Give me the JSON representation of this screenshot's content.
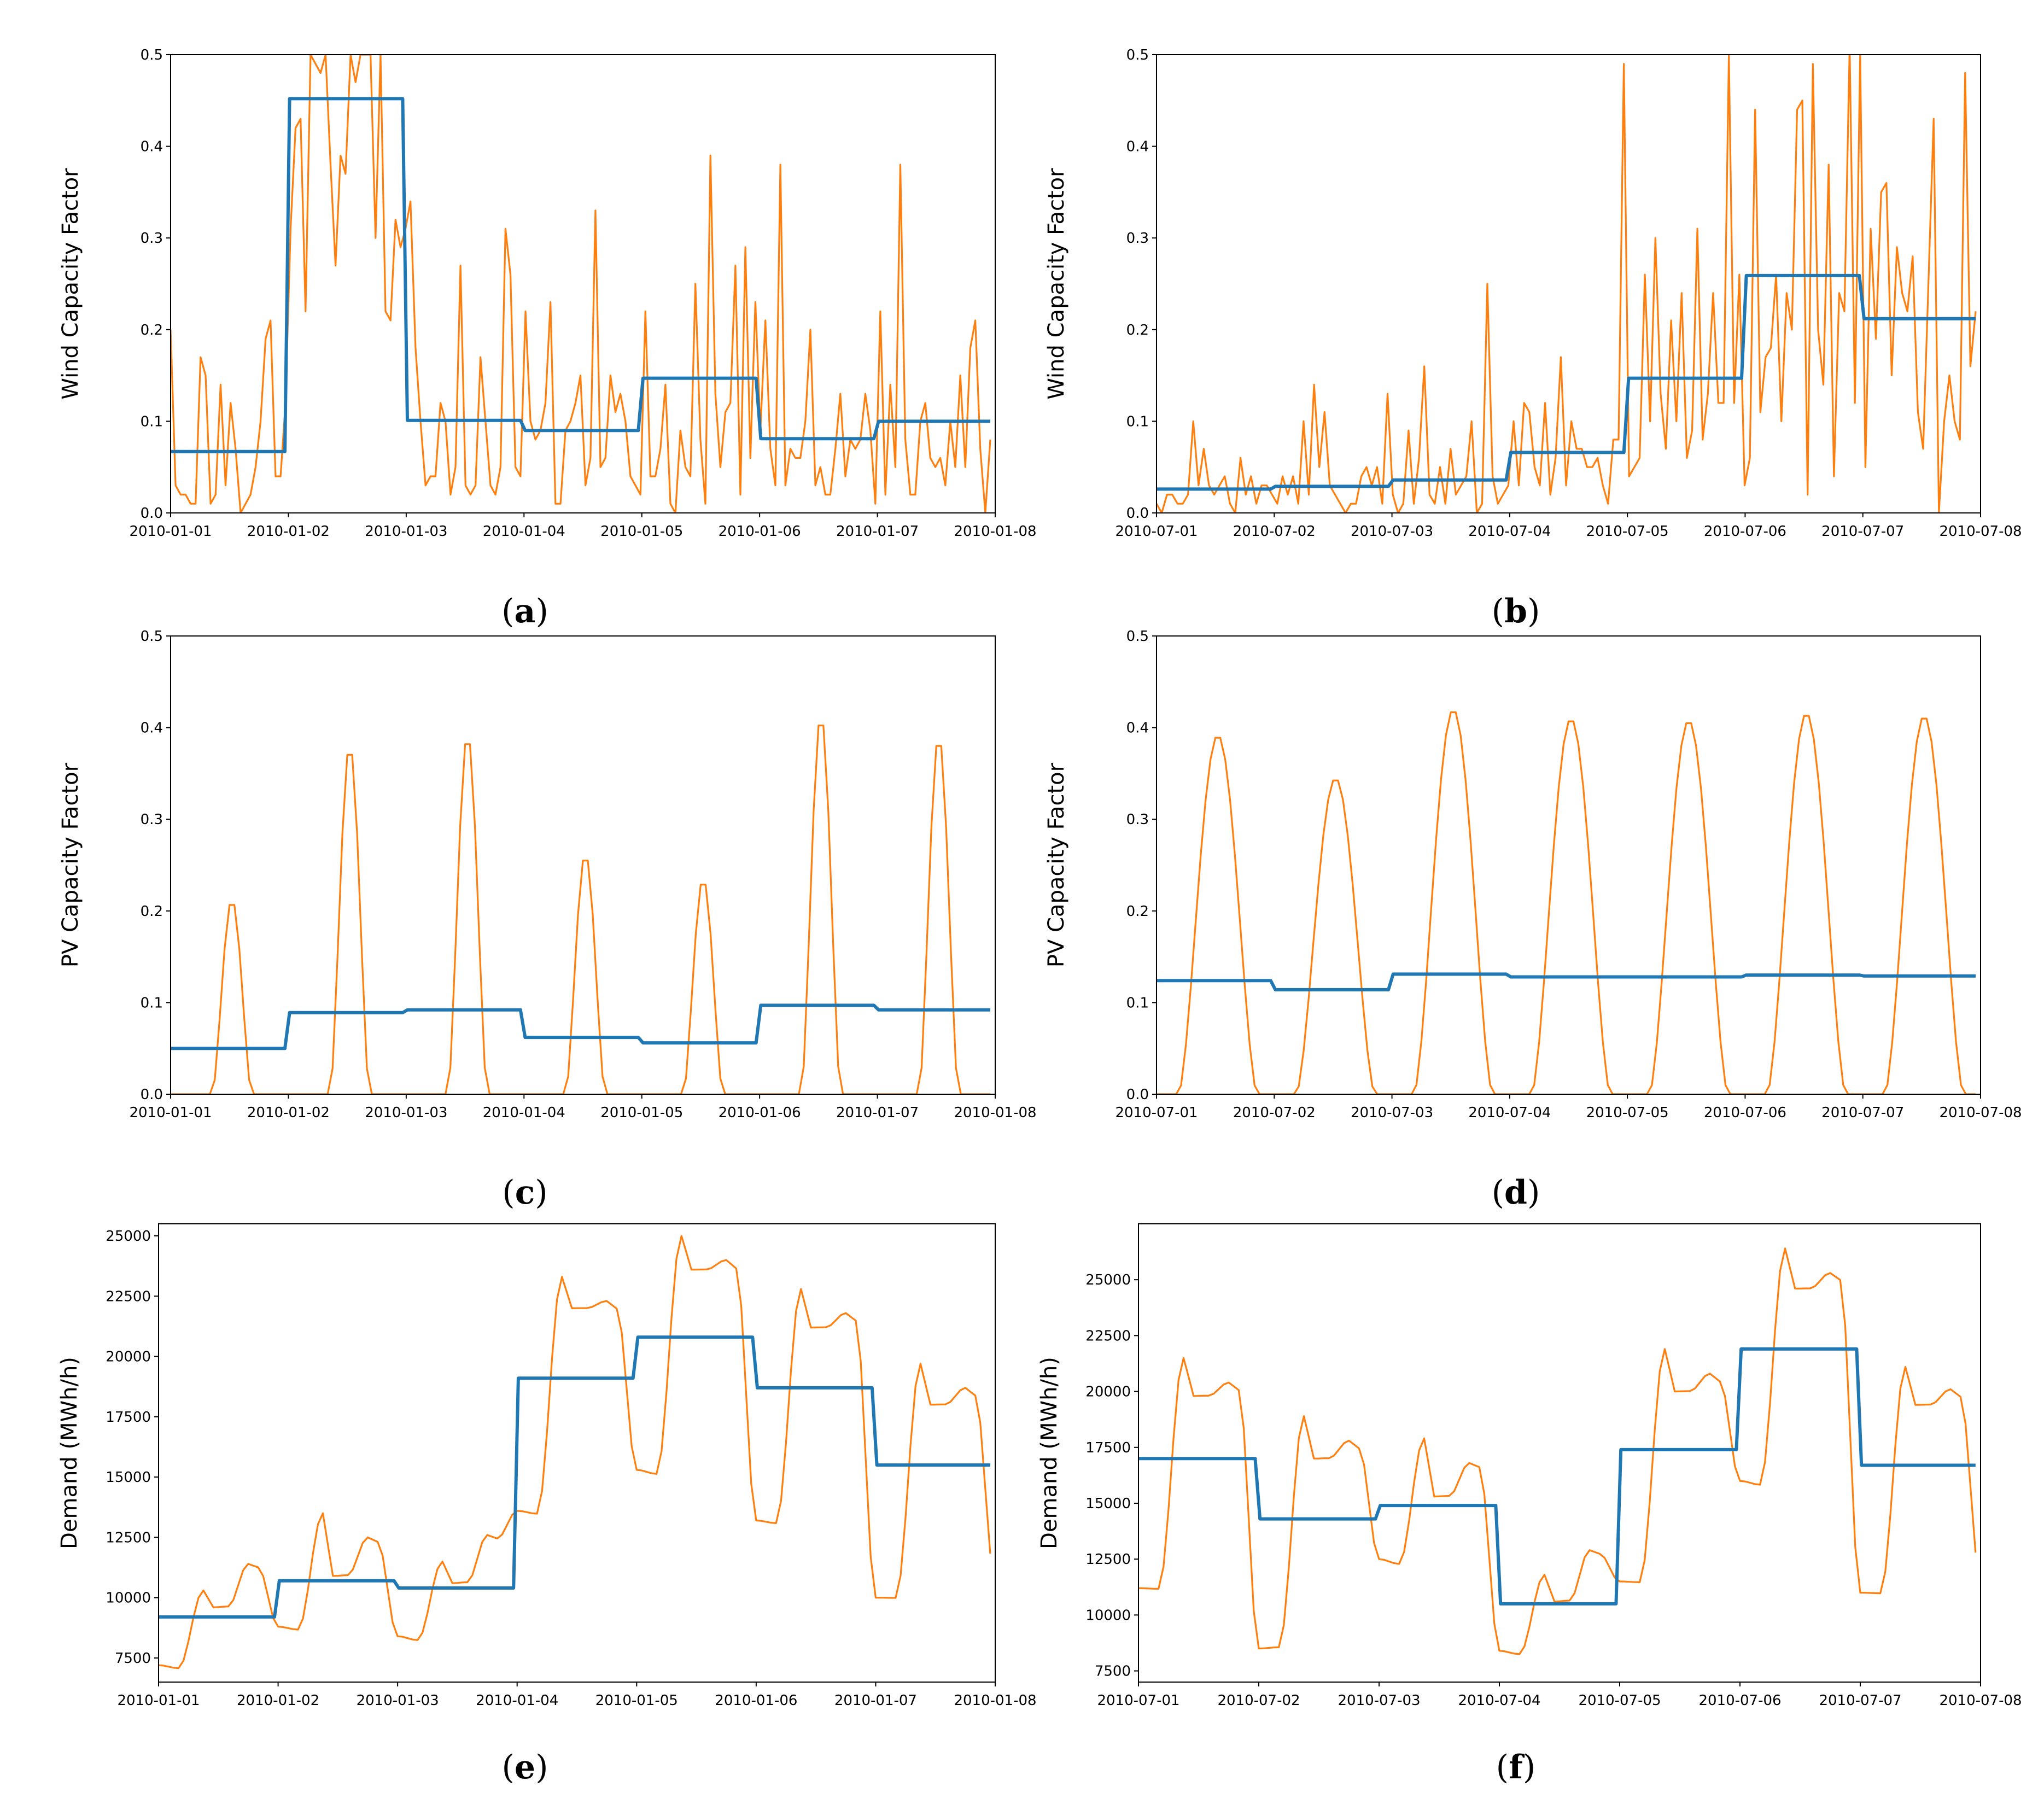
{
  "colors": {
    "series_hourly": "#ff7f0e",
    "series_daily": "#1f77b4",
    "axis": "#000000"
  },
  "chart_data": [
    {
      "panel": "a",
      "type": "line",
      "ylabel": "Wind Capacity Factor",
      "ylim": [
        0,
        0.5
      ],
      "yticks": [
        0.0,
        0.1,
        0.2,
        0.3,
        0.4,
        0.5
      ],
      "ytick_labels": [
        "0.0",
        "0.1",
        "0.2",
        "0.3",
        "0.4",
        "0.5"
      ],
      "xlim": [
        0,
        7
      ],
      "xticks": [
        0,
        1,
        2,
        3,
        4,
        5,
        6,
        7
      ],
      "xtick_labels": [
        "2010-01-01",
        "2010-01-02",
        "2010-01-03",
        "2010-01-04",
        "2010-01-05",
        "2010-01-06",
        "2010-01-07",
        "2010-01-08"
      ],
      "x_units": "days since 2010-01-01 (hourly resolution)",
      "series": [
        {
          "name": "hourly",
          "color": "#ff7f0e",
          "kind": "hourly",
          "values": [
            0.2,
            0.03,
            0.02,
            0.02,
            0.01,
            0.01,
            0.17,
            0.15,
            0.01,
            0.02,
            0.14,
            0.03,
            0.12,
            0.07,
            0.0,
            0.01,
            0.02,
            0.05,
            0.1,
            0.19,
            0.21,
            0.04,
            0.04,
            0.12,
            0.31,
            0.42,
            0.43,
            0.22,
            0.5,
            0.49,
            0.48,
            0.5,
            0.38,
            0.27,
            0.39,
            0.37,
            0.5,
            0.47,
            0.5,
            0.5,
            0.5,
            0.3,
            0.5,
            0.22,
            0.21,
            0.32,
            0.29,
            0.31,
            0.34,
            0.18,
            0.1,
            0.03,
            0.04,
            0.04,
            0.12,
            0.1,
            0.02,
            0.05,
            0.27,
            0.03,
            0.02,
            0.03,
            0.17,
            0.1,
            0.03,
            0.02,
            0.05,
            0.31,
            0.26,
            0.05,
            0.04,
            0.22,
            0.1,
            0.08,
            0.09,
            0.12,
            0.23,
            0.01,
            0.01,
            0.09,
            0.1,
            0.12,
            0.15,
            0.03,
            0.06,
            0.33,
            0.05,
            0.06,
            0.15,
            0.11,
            0.13,
            0.1,
            0.04,
            0.03,
            0.02,
            0.22,
            0.04,
            0.04,
            0.07,
            0.14,
            0.01,
            0.0,
            0.09,
            0.05,
            0.04,
            0.25,
            0.08,
            0.01,
            0.39,
            0.13,
            0.05,
            0.11,
            0.12,
            0.27,
            0.02,
            0.29,
            0.06,
            0.23,
            0.09,
            0.21,
            0.07,
            0.03,
            0.38,
            0.03,
            0.07,
            0.06,
            0.06,
            0.1,
            0.2,
            0.03,
            0.05,
            0.02,
            0.02,
            0.07,
            0.13,
            0.04,
            0.08,
            0.07,
            0.08,
            0.13,
            0.09,
            0.01,
            0.22,
            0.02,
            0.14,
            0.05,
            0.38,
            0.08,
            0.02,
            0.02,
            0.1,
            0.12,
            0.06,
            0.05,
            0.06,
            0.03,
            0.1,
            0.05,
            0.15,
            0.05,
            0.18,
            0.21,
            0.07,
            0.0,
            0.08
          ]
        },
        {
          "name": "daily mean",
          "color": "#1f77b4",
          "kind": "daily",
          "values": [
            0.067,
            0.452,
            0.101,
            0.09,
            0.147,
            0.081,
            0.1
          ]
        }
      ]
    },
    {
      "panel": "b",
      "type": "line",
      "ylabel": "Wind Capacity Factor",
      "ylim": [
        0,
        0.5
      ],
      "yticks": [
        0.0,
        0.1,
        0.2,
        0.3,
        0.4,
        0.5
      ],
      "ytick_labels": [
        "0.0",
        "0.1",
        "0.2",
        "0.3",
        "0.4",
        "0.5"
      ],
      "xlim": [
        0,
        7
      ],
      "xticks": [
        0,
        1,
        2,
        3,
        4,
        5,
        6,
        7
      ],
      "xtick_labels": [
        "2010-07-01",
        "2010-07-02",
        "2010-07-03",
        "2010-07-04",
        "2010-07-05",
        "2010-07-06",
        "2010-07-07",
        "2010-07-08"
      ],
      "x_units": "days since 2010-07-01 (hourly resolution)",
      "series": [
        {
          "name": "hourly",
          "color": "#ff7f0e",
          "kind": "hourly",
          "values": [
            0.01,
            0.0,
            0.02,
            0.02,
            0.01,
            0.01,
            0.02,
            0.1,
            0.03,
            0.07,
            0.03,
            0.02,
            0.03,
            0.04,
            0.01,
            0.0,
            0.06,
            0.02,
            0.04,
            0.01,
            0.03,
            0.03,
            0.02,
            0.01,
            0.04,
            0.02,
            0.04,
            0.01,
            0.1,
            0.02,
            0.14,
            0.05,
            0.11,
            0.03,
            0.02,
            0.01,
            0.0,
            0.01,
            0.01,
            0.04,
            0.05,
            0.03,
            0.05,
            0.01,
            0.13,
            0.02,
            0.0,
            0.01,
            0.09,
            0.01,
            0.06,
            0.16,
            0.02,
            0.01,
            0.05,
            0.01,
            0.07,
            0.02,
            0.03,
            0.04,
            0.1,
            0.0,
            0.01,
            0.25,
            0.04,
            0.01,
            0.02,
            0.03,
            0.1,
            0.03,
            0.12,
            0.11,
            0.05,
            0.03,
            0.12,
            0.02,
            0.06,
            0.17,
            0.03,
            0.1,
            0.07,
            0.07,
            0.05,
            0.05,
            0.06,
            0.03,
            0.01,
            0.08,
            0.08,
            0.49,
            0.04,
            0.05,
            0.06,
            0.26,
            0.1,
            0.3,
            0.13,
            0.07,
            0.21,
            0.1,
            0.24,
            0.06,
            0.09,
            0.31,
            0.08,
            0.13,
            0.24,
            0.12,
            0.12,
            0.5,
            0.12,
            0.26,
            0.03,
            0.06,
            0.44,
            0.11,
            0.17,
            0.18,
            0.26,
            0.1,
            0.24,
            0.2,
            0.44,
            0.45,
            0.02,
            0.49,
            0.2,
            0.14,
            0.38,
            0.04,
            0.24,
            0.22,
            0.51,
            0.12,
            0.5,
            0.05,
            0.31,
            0.19,
            0.35,
            0.36,
            0.15,
            0.29,
            0.24,
            0.22,
            0.28,
            0.11,
            0.07,
            0.25,
            0.43,
            0.0,
            0.1,
            0.15,
            0.1,
            0.08,
            0.48,
            0.16,
            0.22
          ]
        },
        {
          "name": "daily mean",
          "color": "#1f77b4",
          "kind": "daily",
          "values": [
            0.026,
            0.029,
            0.036,
            0.066,
            0.147,
            0.259,
            0.212
          ]
        }
      ]
    },
    {
      "panel": "c",
      "type": "line",
      "ylabel": "PV Capacity Factor",
      "ylim": [
        0,
        0.5
      ],
      "yticks": [
        0.0,
        0.1,
        0.2,
        0.3,
        0.4,
        0.5
      ],
      "ytick_labels": [
        "0.0",
        "0.1",
        "0.2",
        "0.3",
        "0.4",
        "0.5"
      ],
      "xlim": [
        0,
        7
      ],
      "xticks": [
        0,
        1,
        2,
        3,
        4,
        5,
        6,
        7
      ],
      "xtick_labels": [
        "2010-01-01",
        "2010-01-02",
        "2010-01-03",
        "2010-01-04",
        "2010-01-05",
        "2010-01-06",
        "2010-01-07",
        "2010-01-08"
      ],
      "x_units": "days since 2010-01-01 (hourly resolution)",
      "series": [
        {
          "name": "hourly",
          "color": "#ff7f0e",
          "kind": "pv",
          "sunrise_hour": 8.5,
          "sunset_hour": 16.5,
          "daily_peaks": [
            0.213,
            0.382,
            0.394,
            0.263,
            0.236,
            0.415,
            0.392
          ]
        },
        {
          "name": "daily mean",
          "color": "#1f77b4",
          "kind": "daily",
          "values": [
            0.05,
            0.089,
            0.092,
            0.062,
            0.056,
            0.097,
            0.092
          ]
        }
      ]
    },
    {
      "panel": "d",
      "type": "line",
      "ylabel": "PV Capacity Factor",
      "ylim": [
        0,
        0.5
      ],
      "yticks": [
        0.0,
        0.1,
        0.2,
        0.3,
        0.4,
        0.5
      ],
      "ytick_labels": [
        "0.0",
        "0.1",
        "0.2",
        "0.3",
        "0.4",
        "0.5"
      ],
      "xlim": [
        0,
        7
      ],
      "xticks": [
        0,
        1,
        2,
        3,
        4,
        5,
        6,
        7
      ],
      "xtick_labels": [
        "2010-07-01",
        "2010-07-02",
        "2010-07-03",
        "2010-07-04",
        "2010-07-05",
        "2010-07-06",
        "2010-07-07",
        "2010-07-08"
      ],
      "x_units": "days since 2010-07-01 (hourly resolution)",
      "series": [
        {
          "name": "hourly",
          "color": "#ff7f0e",
          "kind": "pv",
          "sunrise_hour": 4.5,
          "sunset_hour": 20.5,
          "daily_peaks": [
            0.392,
            0.345,
            0.42,
            0.41,
            0.408,
            0.416,
            0.413
          ]
        },
        {
          "name": "daily mean",
          "color": "#1f77b4",
          "kind": "daily",
          "values": [
            0.124,
            0.114,
            0.131,
            0.128,
            0.128,
            0.13,
            0.129
          ]
        }
      ]
    },
    {
      "panel": "e",
      "type": "line",
      "ylabel": "Demand  (MWh/h)",
      "ylim": [
        6500,
        25500
      ],
      "yticks": [
        7500,
        10000,
        12500,
        15000,
        17500,
        20000,
        22500,
        25000
      ],
      "ytick_labels": [
        "7500",
        "10000",
        "12500",
        "15000",
        "17500",
        "20000",
        "22500",
        "25000"
      ],
      "xlim": [
        0,
        7
      ],
      "xticks": [
        0,
        1,
        2,
        3,
        4,
        5,
        6,
        7
      ],
      "xtick_labels": [
        "2010-01-01",
        "2010-01-02",
        "2010-01-03",
        "2010-01-04",
        "2010-01-05",
        "2010-01-06",
        "2010-01-07",
        "2010-01-08"
      ],
      "x_units": "days since 2010-01-01 (hourly resolution)",
      "series": [
        {
          "name": "hourly",
          "color": "#ff7f0e",
          "kind": "demand",
          "daily_shapes": [
            {
              "min": 7200,
              "peak1": 10300,
              "mid": 9600,
              "peak2": 11400,
              "end": 7800
            },
            {
              "min": 8800,
              "peak1": 13500,
              "mid": 10900,
              "peak2": 12500,
              "end": 7800
            },
            {
              "min": 8400,
              "peak1": 11500,
              "mid": 10600,
              "peak2": 12600,
              "end": 8900
            },
            {
              "min": 13600,
              "peak1": 23300,
              "mid": 22000,
              "peak2": 22300,
              "end": 14300
            },
            {
              "min": 15300,
              "peak1": 25000,
              "mid": 23600,
              "peak2": 24000,
              "end": 15200
            },
            {
              "min": 13200,
              "peak1": 22800,
              "mid": 21200,
              "peak2": 21800,
              "end": 14000
            },
            {
              "min": 10000,
              "peak1": 19700,
              "mid": 18000,
              "peak2": 18700,
              "end": 10700
            }
          ]
        },
        {
          "name": "daily mean",
          "color": "#1f77b4",
          "kind": "daily",
          "values": [
            9200,
            10700,
            10400,
            19100,
            20800,
            18700,
            15500
          ]
        }
      ]
    },
    {
      "panel": "f",
      "type": "line",
      "ylabel": "Demand  (MWh/h)",
      "ylim": [
        7000,
        27500
      ],
      "yticks": [
        7500,
        10000,
        12500,
        15000,
        17500,
        20000,
        22500,
        25000
      ],
      "ytick_labels": [
        "7500",
        "10000",
        "12500",
        "15000",
        "17500",
        "20000",
        "22500",
        "25000"
      ],
      "xlim": [
        0,
        7
      ],
      "xticks": [
        0,
        1,
        2,
        3,
        4,
        5,
        6,
        7
      ],
      "xtick_labels": [
        "2010-07-01",
        "2010-07-02",
        "2010-07-03",
        "2010-07-04",
        "2010-07-05",
        "2010-07-06",
        "2010-07-07",
        "2010-07-08"
      ],
      "x_units": "days since 2010-07-01 (hourly resolution)",
      "series": [
        {
          "name": "hourly",
          "color": "#ff7f0e",
          "kind": "demand",
          "daily_shapes": [
            {
              "min": 11200,
              "peak1": 21500,
              "mid": 19800,
              "peak2": 20400,
              "end": 12000
            },
            {
              "min": 8500,
              "peak1": 18900,
              "mid": 17000,
              "peak2": 17800,
              "end": 9200
            },
            {
              "min": 12500,
              "peak1": 17900,
              "mid": 15300,
              "peak2": 16800,
              "end": 12200
            },
            {
              "min": 8400,
              "peak1": 11800,
              "mid": 10600,
              "peak2": 12900,
              "end": 8900
            },
            {
              "min": 11500,
              "peak1": 21900,
              "mid": 20000,
              "peak2": 20800,
              "end": 12000
            },
            {
              "min": 16000,
              "peak1": 26400,
              "mid": 24600,
              "peak2": 25300,
              "end": 17500
            },
            {
              "min": 11000,
              "peak1": 21100,
              "mid": 19400,
              "peak2": 20100,
              "end": 11600
            }
          ]
        },
        {
          "name": "daily mean",
          "color": "#1f77b4",
          "kind": "daily",
          "values": [
            17000,
            14300,
            14900,
            10500,
            17400,
            21900,
            16700
          ]
        }
      ]
    }
  ],
  "captions": [
    {
      "open": "(",
      "letter": "a",
      "close": ")"
    },
    {
      "open": "(",
      "letter": "b",
      "close": ")"
    },
    {
      "open": "(",
      "letter": "c",
      "close": ")"
    },
    {
      "open": "(",
      "letter": "d",
      "close": ")"
    },
    {
      "open": "(",
      "letter": "e",
      "close": ")"
    },
    {
      "open": "(",
      "letter": "f",
      "close": ")"
    }
  ]
}
